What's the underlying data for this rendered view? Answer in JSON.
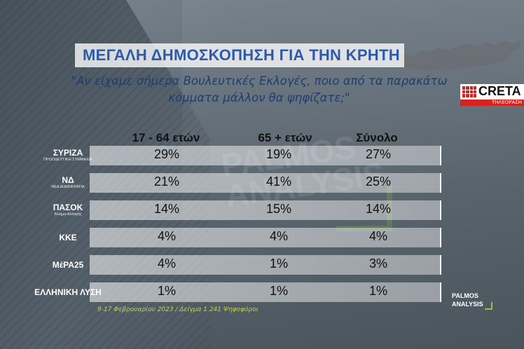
{
  "title": "ΜΕΓΑΛΗ ΔΗΜΟΣΚΟΠΗΣΗ ΓΙΑ ΤΗΝ ΚΡΗΤΗ",
  "question": "\"Αν είχαμε σήμερα Βουλευτικές Εκλογές, ποιο από τα παρακάτω κόμματα μάλλον θα ψηφίζατε;\"",
  "broadcaster": {
    "name": "CRETA",
    "sub": "ΤΗΛΕΟΡΑΣΗ"
  },
  "footer": "9-17 Φεβρουαρίου 2023 / Δείγμα 1.241 Ψηφοφόροι",
  "pollster": {
    "line1": "PALMOS",
    "line2": "ANALYSIS"
  },
  "watermark": {
    "line1": "PALMOS",
    "line2": "ANALYSIS"
  },
  "parties": [
    {
      "main": "ΣΥΡΙΖΑ",
      "sub": "ΠΡΟΟΔΕΥΤΙΚΗ ΣΥΜΜΑΧΙΑ"
    },
    {
      "main": "ΝΔ",
      "sub": "ΝΕΑ ΔΗΜΟΚΡΑΤΙΑ"
    },
    {
      "main": "ΠΑΣΟΚ",
      "sub": "Κίνημα Αλλαγής"
    },
    {
      "main": "ΚΚΕ",
      "sub": ""
    },
    {
      "main": "ΜέΡΑ25",
      "sub": ""
    },
    {
      "main": "ΕΛΛΗΝΙΚΗ ΛΥΣΗ",
      "sub": ""
    }
  ],
  "colors": {
    "title": "#2f5aa8",
    "question": "#1d3e6e",
    "footer": "#c9d43a",
    "accent": "#d7231f",
    "palmos_green": "#8dc63f"
  },
  "chart_data": {
    "type": "table",
    "columns": [
      "17 - 64 ετών",
      "65 + ετών",
      "Σύνολο"
    ],
    "rows": [
      [
        "29%",
        "19%",
        "27%"
      ],
      [
        "21%",
        "41%",
        "25%"
      ],
      [
        "14%",
        "15%",
        "14%"
      ],
      [
        "4%",
        "4%",
        "4%"
      ],
      [
        "4%",
        "1%",
        "3%"
      ],
      [
        "1%",
        "1%",
        "1%"
      ]
    ]
  }
}
